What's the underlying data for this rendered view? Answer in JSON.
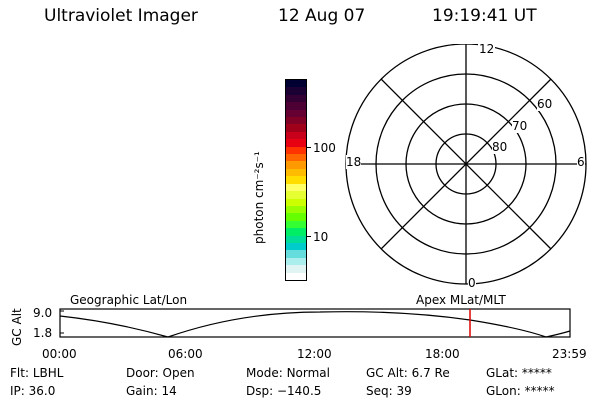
{
  "header": {
    "instrument": "Ultraviolet Imager",
    "date": "12 Aug 07",
    "time": "19:19:41 UT"
  },
  "colorbar": {
    "axis_label": "photon cm⁻²s⁻¹",
    "tick_high": "100",
    "tick_low": "10",
    "colors": [
      "#000033",
      "#1a0033",
      "#330033",
      "#4d0033",
      "#660033",
      "#800026",
      "#a0001a",
      "#c8001a",
      "#e60012",
      "#ff3300",
      "#ff6600",
      "#ff9900",
      "#ffbb00",
      "#ffdd00",
      "#ffff66",
      "#e6ff33",
      "#ccff00",
      "#99ff00",
      "#66ff00",
      "#33ff33",
      "#00ee66",
      "#00dd99",
      "#00cccc",
      "#66dddd",
      "#aaeeee",
      "#e0f4f4",
      "#ffffff"
    ]
  },
  "polar": {
    "mlt_top": "12",
    "mlt_right": "6",
    "mlt_bottom": "0",
    "mlt_left": "18",
    "lat_60": "60",
    "lat_70": "70",
    "lat_80": "80"
  },
  "orbit": {
    "left_title": "Geographic Lat/Lon",
    "right_title": "Apex MLat/MLT",
    "y_axis_label": "GC Alt",
    "y_high": "9.0",
    "y_low": "1.8",
    "x_ticks": [
      "00:00",
      "06:00",
      "12:00",
      "18:00",
      "23:59"
    ],
    "marker_color": "#dd0000"
  },
  "info": {
    "filter_label": "Flt:",
    "filter_value": "LBHL",
    "ip_label": "IP:",
    "ip_value": "36.0",
    "door_label": "Door:",
    "door_value": "Open",
    "gain_label": "Gain:",
    "gain_value": "14",
    "mode_label": "Mode:",
    "mode_value": "Normal",
    "dsp_label": "Dsp:",
    "dsp_value": "−140.5",
    "gcalt_label": "GC Alt:",
    "gcalt_value": "6.7 Re",
    "seq_label": "Seq:",
    "seq_value": "39",
    "glat_label": "GLat:",
    "glat_value": "*****",
    "glon_label": "GLon:",
    "glon_value": "*****"
  }
}
